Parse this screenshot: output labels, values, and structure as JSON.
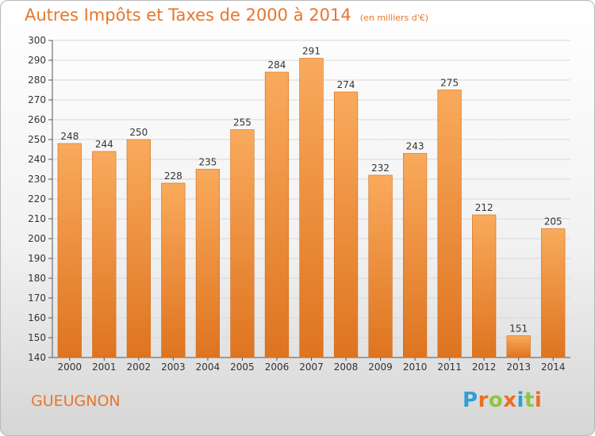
{
  "title": "Autres Impôts et Taxes de 2000 à 2014",
  "subtitle": "(en milliers d'€)",
  "place": "GUEUGNON",
  "logo": {
    "text": "Proxiti",
    "letters": [
      {
        "ch": "P",
        "color": "#2e9fd6"
      },
      {
        "ch": "r",
        "color": "#ea6f25"
      },
      {
        "ch": "o",
        "color": "#8ec641"
      },
      {
        "ch": "x",
        "color": "#ea6f25"
      },
      {
        "ch": "i",
        "color": "#2e9fd6"
      },
      {
        "ch": "t",
        "color": "#8ec641"
      },
      {
        "ch": "i",
        "color": "#ea6f25"
      }
    ]
  },
  "colors": {
    "accent": "#e8762c",
    "bar_light": "#f9aa5c",
    "bar_dark": "#de7420",
    "grid": "#d8d8d8"
  },
  "chart_data": {
    "type": "bar",
    "title": "Autres Impôts et Taxes de 2000 à 2014",
    "categories": [
      "2000",
      "2001",
      "2002",
      "2003",
      "2004",
      "2005",
      "2006",
      "2007",
      "2008",
      "2009",
      "2010",
      "2011",
      "2012",
      "2013",
      "2014"
    ],
    "values": [
      248,
      244,
      250,
      228,
      235,
      255,
      284,
      291,
      274,
      232,
      243,
      275,
      212,
      151,
      205
    ],
    "ylim": [
      140,
      300
    ],
    "ytick_step": 10,
    "grid": true,
    "xlabel": "",
    "ylabel": ""
  }
}
